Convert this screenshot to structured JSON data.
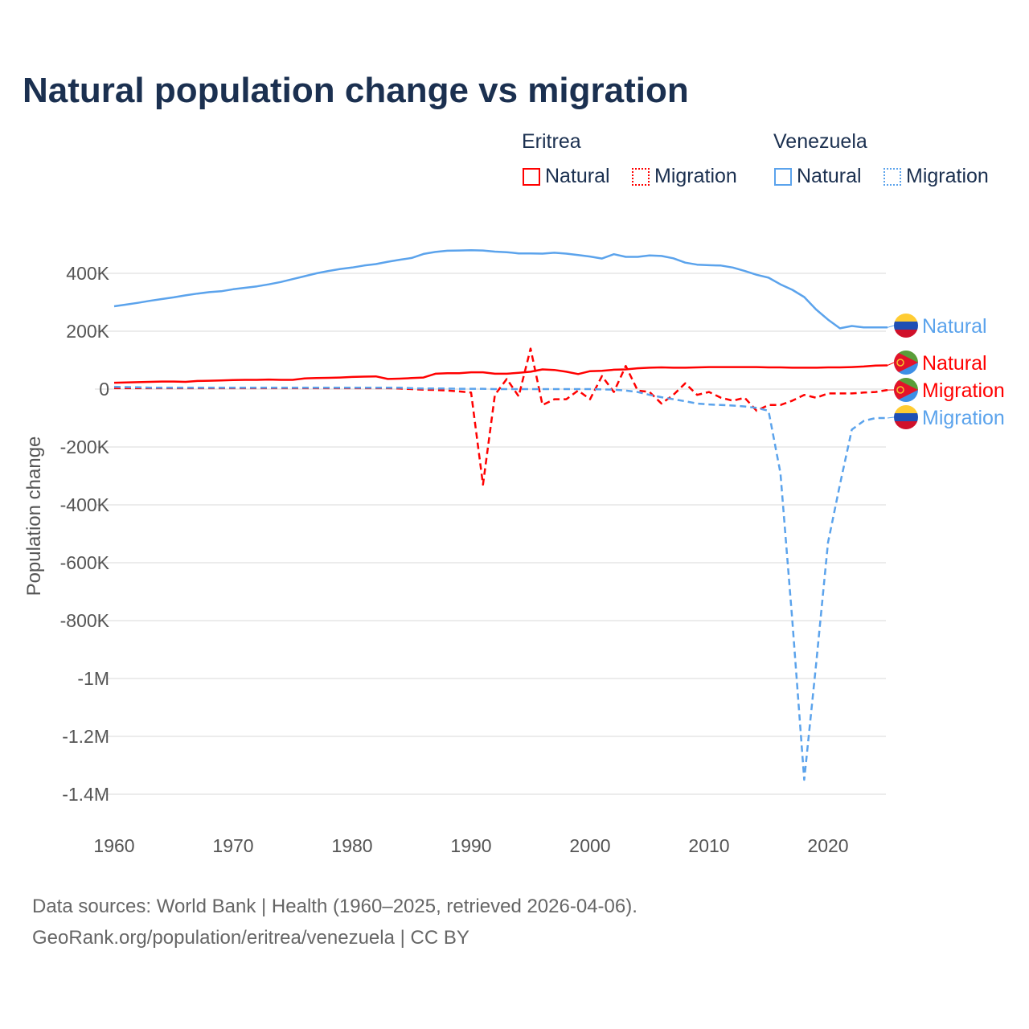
{
  "colors": {
    "eritrea": "#ff0000",
    "venezuela": "#5ba3ec",
    "title": "#1b3050"
  },
  "legend": {
    "eritrea": {
      "label": "Eritrea",
      "natural": "Natural",
      "migration": "Migration"
    },
    "venezuela": {
      "label": "Venezuela",
      "natural": "Natural",
      "migration": "Migration"
    }
  },
  "source": {
    "line1": "Data sources: World Bank | Health (1960–2025, retrieved 2026-04-06).",
    "line2": "GeoRank.org/population/eritrea/venezuela | CC BY"
  },
  "chart_data": {
    "type": "line",
    "title": "Natural population change vs migration",
    "xlabel": "",
    "ylabel": "Population change",
    "xlim": [
      1960,
      2025
    ],
    "ylim": [
      -1500000,
      500000
    ],
    "x_ticks": [
      1960,
      1970,
      1980,
      1990,
      2000,
      2010,
      2020
    ],
    "y_ticks": [
      {
        "v": 400000,
        "l": "400K"
      },
      {
        "v": 200000,
        "l": "200K"
      },
      {
        "v": 0,
        "l": "0"
      },
      {
        "v": -200000,
        "l": "-200K"
      },
      {
        "v": -400000,
        "l": "-400K"
      },
      {
        "v": -600000,
        "l": "-600K"
      },
      {
        "v": -800000,
        "l": "-800K"
      },
      {
        "v": -1000000,
        "l": "-1M"
      },
      {
        "v": -1200000,
        "l": "-1.2M"
      },
      {
        "v": -1400000,
        "l": "-1.4M"
      }
    ],
    "grid": true,
    "x_start": 1960,
    "series": [
      {
        "name": "Venezuela Natural",
        "country": "venezuela",
        "dashed": false,
        "end_label": "Natural",
        "unit_k": true,
        "values": [
          286,
          292,
          298,
          305,
          311,
          317,
          324,
          330,
          335,
          338,
          345,
          350,
          355,
          362,
          370,
          380,
          390,
          400,
          408,
          415,
          420,
          427,
          432,
          440,
          447,
          453,
          467,
          474,
          478,
          479,
          480,
          479,
          475,
          473,
          469,
          469,
          468,
          471,
          468,
          463,
          458,
          451,
          466,
          457,
          457,
          462,
          460,
          452,
          437,
          430,
          428,
          427,
          420,
          408,
          395,
          385,
          362,
          343,
          318,
          275,
          240,
          210,
          218,
          213,
          213,
          213
        ]
      },
      {
        "name": "Eritrea Natural",
        "country": "eritrea",
        "dashed": false,
        "end_label": "Natural",
        "unit_k": true,
        "values": [
          22,
          23,
          24,
          25,
          26,
          26,
          25,
          28,
          29,
          30,
          31,
          32,
          32,
          33,
          32,
          32,
          37,
          38,
          39,
          40,
          42,
          43,
          44,
          35,
          36,
          38,
          40,
          53,
          55,
          55,
          58,
          58,
          53,
          53,
          56,
          60,
          68,
          66,
          60,
          52,
          62,
          63,
          67,
          68,
          72,
          74,
          75,
          74,
          74,
          75,
          76,
          76,
          76,
          76,
          76,
          75,
          75,
          74,
          74,
          74,
          75,
          75,
          76,
          78,
          81,
          82
        ]
      },
      {
        "name": "Eritrea Migration",
        "country": "eritrea",
        "dashed": true,
        "end_label": "Migration",
        "unit_k": true,
        "values": [
          3,
          3,
          3,
          3,
          3,
          3,
          3,
          3,
          3,
          3,
          3,
          3,
          3,
          3,
          3,
          3,
          3,
          3,
          3,
          3,
          3,
          3,
          3,
          3,
          2,
          0,
          -2,
          -3,
          -5,
          -8,
          -12,
          -330,
          -20,
          35,
          -25,
          140,
          -55,
          -35,
          -35,
          -5,
          -35,
          45,
          -10,
          80,
          -5,
          -10,
          -50,
          -20,
          20,
          -20,
          -10,
          -30,
          -40,
          -30,
          -75,
          -55,
          -55,
          -40,
          -20,
          -30,
          -15,
          -15,
          -15,
          -12,
          -10,
          -3
        ]
      },
      {
        "name": "Venezuela Migration",
        "country": "venezuela",
        "dashed": true,
        "end_label": "Migration",
        "unit_k": true,
        "values": [
          8,
          7,
          6,
          5,
          5,
          5,
          5,
          5,
          5,
          5,
          5,
          5,
          5,
          5,
          5,
          5,
          5,
          5,
          5,
          5,
          5,
          5,
          5,
          5,
          5,
          3,
          2,
          2,
          2,
          1,
          1,
          1,
          0,
          0,
          0,
          0,
          0,
          0,
          0,
          0,
          0,
          -1,
          -2,
          -5,
          -10,
          -20,
          -28,
          -35,
          -42,
          -50,
          -53,
          -55,
          -57,
          -60,
          -65,
          -75,
          -290,
          -800,
          -1350,
          -950,
          -530,
          -330,
          -140,
          -110,
          -100,
          -100
        ]
      }
    ]
  }
}
